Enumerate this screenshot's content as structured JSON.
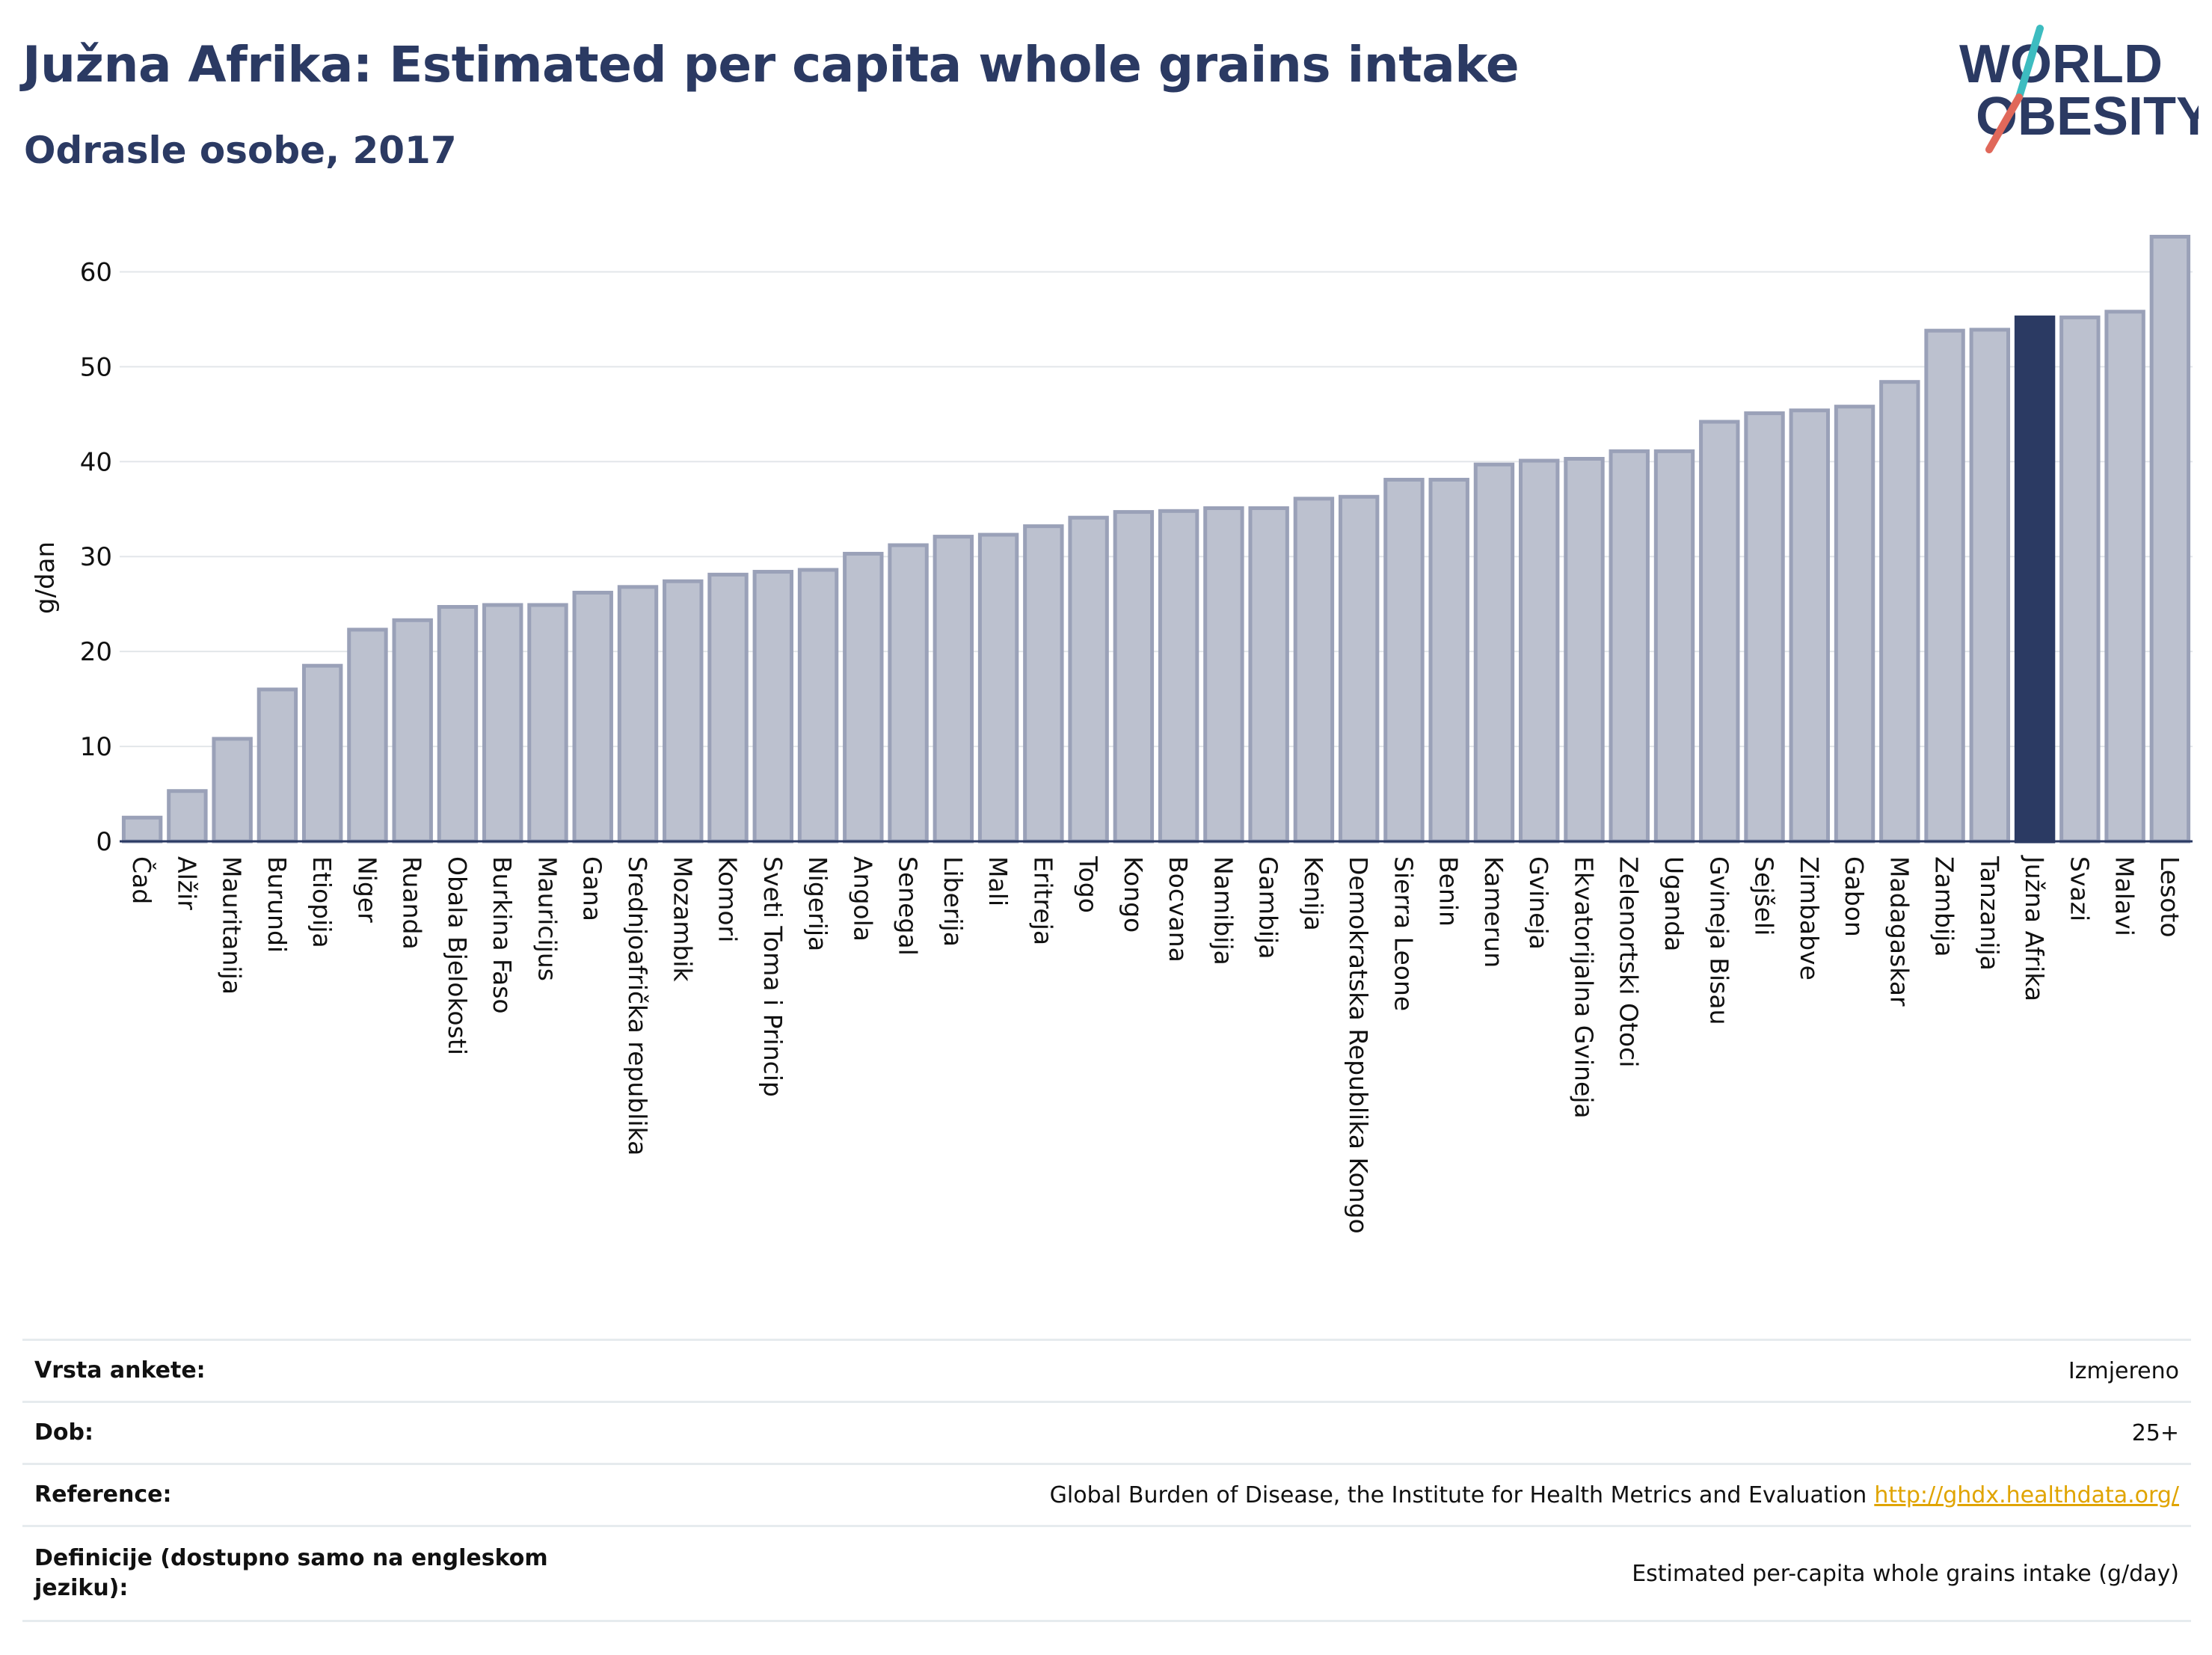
{
  "header": {
    "title": "Južna Afrika: Estimated per capita whole grains intake",
    "subtitle": "Odrasle osobe, 2017"
  },
  "logo": {
    "line1": "WORLD",
    "line2": "OBESITY",
    "colors": {
      "text": "#2b3a63",
      "slash_red": "#e0685a",
      "slash_teal": "#3dbcc0"
    }
  },
  "colors": {
    "bar_fill": "#bcc1cf",
    "bar_stroke": "#9aa1b8",
    "highlight_fill": "#2b3a63",
    "grid": "#e3e6ea",
    "axis_text": "#111111"
  },
  "chart_data": {
    "type": "bar",
    "ylabel": "g/dan",
    "ylim": [
      0,
      65
    ],
    "yticks": [
      0,
      10,
      20,
      30,
      40,
      50,
      60
    ],
    "grid": true,
    "highlight": "Južna Afrika",
    "categories": [
      "Čad",
      "Alžir",
      "Mauritanija",
      "Burundi",
      "Etiopija",
      "Niger",
      "Ruanda",
      "Obala Bjelokosti",
      "Burkina Faso",
      "Mauricijus",
      "Gana",
      "Srednjoafrička republika",
      "Mozambik",
      "Komori",
      "Sveti Toma i Princip",
      "Nigerija",
      "Angola",
      "Senegal",
      "Liberija",
      "Mali",
      "Eritreja",
      "Togo",
      "Kongo",
      "Bocvana",
      "Namibija",
      "Gambija",
      "Kenija",
      "Demokratska Republika Kongo",
      "Sierra Leone",
      "Benin",
      "Kamerun",
      "Gvineja",
      "Ekvatorijalna Gvineja",
      "Zelenortski Otoci",
      "Uganda",
      "Gvineja Bisau",
      "Sejšeli",
      "Zimbabve",
      "Gabon",
      "Madagaskar",
      "Zambija",
      "Tanzanija",
      "Južna Afrika",
      "Svazi",
      "Malavi",
      "Lesoto"
    ],
    "values": [
      2.5,
      5.3,
      10.8,
      16.0,
      18.5,
      22.3,
      23.3,
      24.7,
      24.9,
      24.9,
      26.2,
      26.8,
      27.4,
      28.1,
      28.4,
      28.6,
      30.3,
      31.2,
      32.1,
      32.3,
      33.2,
      34.1,
      34.7,
      34.8,
      35.1,
      35.1,
      36.1,
      36.3,
      38.1,
      38.1,
      39.7,
      40.1,
      40.3,
      41.1,
      41.1,
      44.2,
      45.1,
      45.4,
      45.8,
      48.4,
      53.8,
      53.9,
      55.2,
      55.2,
      55.8,
      63.7
    ]
  },
  "info_table": {
    "rows": [
      {
        "label": "Vrsta ankete:",
        "value": "Izmjereno"
      },
      {
        "label": "Dob:",
        "value": "25+"
      },
      {
        "label": "Reference:",
        "value": "Global Burden of Disease, the Institute for Health Metrics and Evaluation",
        "link": "http://ghdx.healthdata.org/"
      },
      {
        "label": "Definicije (dostupno samo na engleskom jeziku):",
        "value": "Estimated per-capita whole grains intake (g/day)"
      }
    ]
  }
}
